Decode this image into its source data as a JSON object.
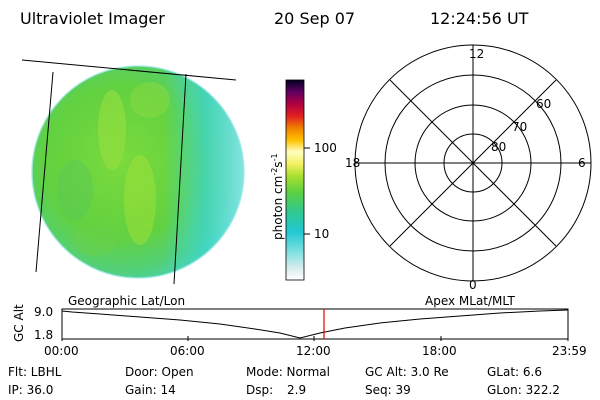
{
  "header": {
    "instrument": "Ultraviolet Imager",
    "date": "20 Sep 07",
    "time": "12:24:56 UT"
  },
  "colorbar": {
    "unit": "photon cm",
    "unit_sup1": "-2",
    "unit_mid": "s",
    "unit_sup2": "-1",
    "tick_100": "100",
    "tick_10": "10"
  },
  "polar_plot": {
    "label_top": "12",
    "label_bottom": "0",
    "label_left": "18",
    "label_right": "6",
    "ring_60": "60",
    "ring_70": "70",
    "ring_80": "80"
  },
  "orbit_panel": {
    "ylabel": "GC Alt",
    "ytick_top": "9.0",
    "ytick_bottom": "1.8",
    "left_title": "Geographic Lat/Lon",
    "right_title": "Apex MLat/MLT",
    "xticks": [
      "00:00",
      "06:00",
      "12:00",
      "18:00",
      "23:59"
    ]
  },
  "info": {
    "row1": {
      "filter": "Flt: LBHL",
      "door": "Door: Open",
      "mode": "Mode: Normal",
      "gcalt": "GC Alt: 3.0 Re",
      "glat": "GLat:   6.6"
    },
    "row2": {
      "ip": "IP: 36.0",
      "gain": "Gain: 14",
      "dsp_label": "Dsp:",
      "dsp_value": "2.9",
      "seq": "Seq: 39",
      "glon": "GLon: 322.2"
    }
  },
  "colors": {
    "disk_green": "#6ed43a",
    "disk_cyan": "#3fd8d0",
    "time_marker": "#e00000"
  }
}
